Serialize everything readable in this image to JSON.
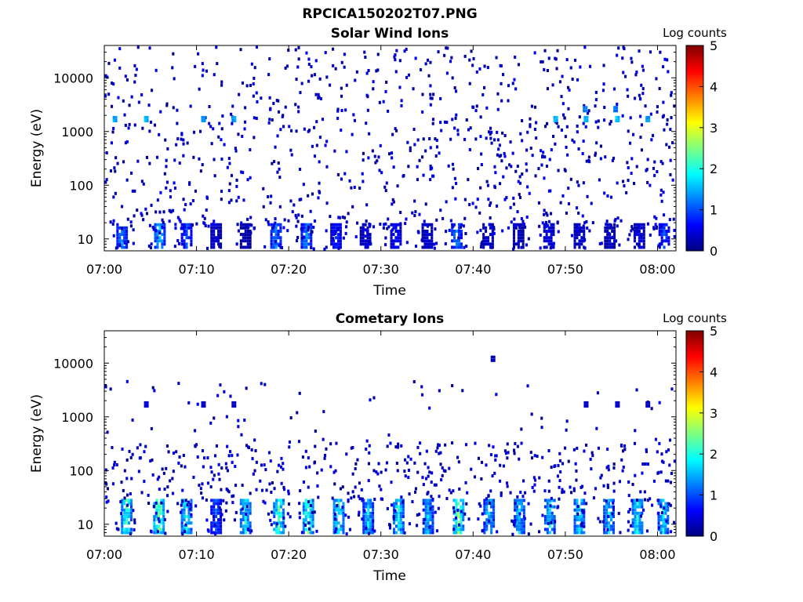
{
  "figure": {
    "title": "RPCICA150202T07.PNG"
  },
  "colors": {
    "colormap": [
      "#00007f",
      "#0000ff",
      "#007fff",
      "#00ffff",
      "#7fff7f",
      "#ffff00",
      "#ff7f00",
      "#ff0000",
      "#7f0000"
    ],
    "axis": "#000000",
    "background": "#ffffff"
  },
  "chart_data": [
    {
      "type": "heatmap",
      "title": "Solar Wind Ions",
      "xlabel": "Time",
      "ylabel": "Energy (eV)",
      "x_ticks": [
        "07:00",
        "07:10",
        "07:20",
        "07:30",
        "07:40",
        "07:50",
        "08:00"
      ],
      "x_range_minutes": [
        0,
        62
      ],
      "y_scale": "log",
      "y_ticks": [
        "10",
        "100",
        "1000",
        "10000"
      ],
      "y_range_ev": [
        6,
        40000
      ],
      "colorbar": {
        "label": "Log counts",
        "ticks": [
          "0",
          "1",
          "2",
          "3",
          "4",
          "5"
        ],
        "range": [
          0,
          5
        ]
      },
      "features": {
        "low_energy_bursts": [
          {
            "t_min": 1.8,
            "log_counts": 1.5
          },
          {
            "t_min": 5.9,
            "log_counts": 1.8
          },
          {
            "t_min": 8.8,
            "log_counts": 1.2
          },
          {
            "t_min": 12.0,
            "log_counts": 0.5
          },
          {
            "t_min": 15.2,
            "log_counts": 0.3
          },
          {
            "t_min": 18.5,
            "log_counts": 1.5
          },
          {
            "t_min": 21.8,
            "log_counts": 1.5
          },
          {
            "t_min": 25.0,
            "log_counts": 1.0
          },
          {
            "t_min": 28.2,
            "log_counts": 0.5
          },
          {
            "t_min": 31.5,
            "log_counts": 0.8
          },
          {
            "t_min": 34.9,
            "log_counts": 0.5
          },
          {
            "t_min": 38.1,
            "log_counts": 1.5
          },
          {
            "t_min": 41.5,
            "log_counts": 0.5
          },
          {
            "t_min": 44.8,
            "log_counts": 0.4
          },
          {
            "t_min": 48.1,
            "log_counts": 0.6
          },
          {
            "t_min": 51.4,
            "log_counts": 0.5
          },
          {
            "t_min": 54.7,
            "log_counts": 0.4
          },
          {
            "t_min": 57.9,
            "log_counts": 0.6
          },
          {
            "t_min": 60.6,
            "log_counts": 1.2
          }
        ],
        "high_energy_spots": [
          {
            "t_min": 1.0,
            "energy_ev": 1700,
            "log_counts": 1.6
          },
          {
            "t_min": 4.4,
            "energy_ev": 1700,
            "log_counts": 1.7
          },
          {
            "t_min": 10.6,
            "energy_ev": 1700,
            "log_counts": 1.5
          },
          {
            "t_min": 13.9,
            "energy_ev": 1700,
            "log_counts": 1.5
          },
          {
            "t_min": 48.8,
            "energy_ev": 1700,
            "log_counts": 1.6
          },
          {
            "t_min": 52.1,
            "energy_ev": 1700,
            "log_counts": 1.7
          },
          {
            "t_min": 55.5,
            "energy_ev": 1700,
            "log_counts": 1.8
          },
          {
            "t_min": 58.8,
            "energy_ev": 1700,
            "log_counts": 1.6
          },
          {
            "t_min": 52.0,
            "energy_ev": 2600,
            "log_counts": 1.4
          },
          {
            "t_min": 55.3,
            "energy_ev": 2600,
            "log_counts": 1.3
          }
        ]
      }
    },
    {
      "type": "heatmap",
      "title": "Cometary Ions",
      "xlabel": "Time",
      "ylabel": "Energy (eV)",
      "x_ticks": [
        "07:00",
        "07:10",
        "07:20",
        "07:30",
        "07:40",
        "07:50",
        "08:00"
      ],
      "x_range_minutes": [
        0,
        62
      ],
      "y_scale": "log",
      "y_ticks": [
        "10",
        "100",
        "1000",
        "10000"
      ],
      "y_range_ev": [
        6,
        40000
      ],
      "colorbar": {
        "label": "Log counts",
        "ticks": [
          "0",
          "1",
          "2",
          "3",
          "4",
          "5"
        ],
        "range": [
          0,
          5
        ]
      },
      "features": {
        "low_energy_bursts": [
          {
            "t_min": 2.3,
            "log_counts": 2.5
          },
          {
            "t_min": 5.8,
            "log_counts": 3.0
          },
          {
            "t_min": 8.8,
            "log_counts": 2.3
          },
          {
            "t_min": 12.0,
            "log_counts": 1.2
          },
          {
            "t_min": 15.2,
            "log_counts": 2.2
          },
          {
            "t_min": 18.8,
            "log_counts": 2.7
          },
          {
            "t_min": 22.0,
            "log_counts": 2.8
          },
          {
            "t_min": 25.3,
            "log_counts": 2.4
          },
          {
            "t_min": 28.5,
            "log_counts": 2.0
          },
          {
            "t_min": 31.8,
            "log_counts": 2.2
          },
          {
            "t_min": 35.0,
            "log_counts": 1.9
          },
          {
            "t_min": 38.3,
            "log_counts": 2.9
          },
          {
            "t_min": 41.6,
            "log_counts": 2.0
          },
          {
            "t_min": 44.9,
            "log_counts": 2.0
          },
          {
            "t_min": 48.2,
            "log_counts": 2.0
          },
          {
            "t_min": 51.4,
            "log_counts": 2.2
          },
          {
            "t_min": 54.6,
            "log_counts": 2.0
          },
          {
            "t_min": 57.7,
            "log_counts": 2.2
          },
          {
            "t_min": 60.5,
            "log_counts": 2.1
          }
        ],
        "high_energy_spots": [
          {
            "t_min": 4.4,
            "energy_ev": 1700,
            "log_counts": 0.5
          },
          {
            "t_min": 10.6,
            "energy_ev": 1700,
            "log_counts": 0.4
          },
          {
            "t_min": 13.9,
            "energy_ev": 1700,
            "log_counts": 0.4
          },
          {
            "t_min": 52.1,
            "energy_ev": 1700,
            "log_counts": 0.4
          },
          {
            "t_min": 55.5,
            "energy_ev": 1700,
            "log_counts": 0.4
          },
          {
            "t_min": 58.8,
            "energy_ev": 1700,
            "log_counts": 0.4
          },
          {
            "t_min": 42.0,
            "energy_ev": 12000,
            "log_counts": 0.3
          }
        ]
      }
    }
  ]
}
